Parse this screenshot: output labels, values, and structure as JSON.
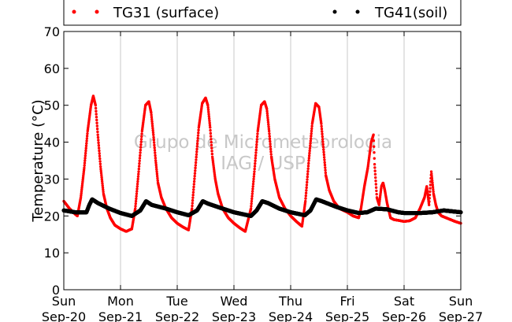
{
  "chart_data": {
    "type": "scatter",
    "ylabel": "Temperature (°C)",
    "xlabel": "",
    "ylim": [
      0,
      70
    ],
    "yticks": [
      0,
      10,
      20,
      30,
      40,
      50,
      60,
      70
    ],
    "xlim_days": [
      0,
      7
    ],
    "xticks": [
      {
        "day": "Sun",
        "date": "Sep-20"
      },
      {
        "day": "Mon",
        "date": "Sep-21"
      },
      {
        "day": "Tue",
        "date": "Sep-22"
      },
      {
        "day": "Wed",
        "date": "Sep-23"
      },
      {
        "day": "Thu",
        "date": "Sep-24"
      },
      {
        "day": "Fri",
        "date": "Sep-25"
      },
      {
        "day": "Sat",
        "date": "Sep-26"
      },
      {
        "day": "Sun",
        "date": "Sep-27"
      }
    ],
    "grid": "vertical",
    "legend": "top",
    "watermark": [
      "Grupo de Micrometeorologia",
      "IAG / USP"
    ],
    "series": [
      {
        "name": "TG31 (surface)",
        "color": "#ff0000",
        "x": [
          0.0,
          0.1,
          0.2,
          0.24,
          0.3,
          0.36,
          0.42,
          0.48,
          0.52,
          0.56,
          0.6,
          0.65,
          0.7,
          0.76,
          0.82,
          0.9,
          1.0,
          1.1,
          1.2,
          1.26,
          1.32,
          1.38,
          1.44,
          1.5,
          1.54,
          1.58,
          1.62,
          1.66,
          1.72,
          1.8,
          1.9,
          2.0,
          2.1,
          2.2,
          2.26,
          2.32,
          2.38,
          2.44,
          2.5,
          2.54,
          2.58,
          2.62,
          2.67,
          2.72,
          2.8,
          2.9,
          3.0,
          3.1,
          3.2,
          3.3,
          3.36,
          3.42,
          3.48,
          3.54,
          3.58,
          3.62,
          3.66,
          3.72,
          3.8,
          3.9,
          4.0,
          4.1,
          4.2,
          4.26,
          4.32,
          4.38,
          4.44,
          4.5,
          4.54,
          4.58,
          4.62,
          4.68,
          4.76,
          4.86,
          5.0,
          5.1,
          5.2,
          5.24,
          5.3,
          5.36,
          5.42,
          5.46,
          5.48,
          5.52,
          5.56,
          5.6,
          5.63,
          5.66,
          5.7,
          5.76,
          5.82,
          5.9,
          6.0,
          6.1,
          6.2,
          6.28,
          6.36,
          6.4,
          6.44,
          6.48,
          6.52,
          6.56,
          6.6,
          6.66,
          6.74,
          6.82,
          6.9,
          7.0
        ],
        "y": [
          24.0,
          22.0,
          20.5,
          20.0,
          25.0,
          33.0,
          43.0,
          50.0,
          52.5,
          50.0,
          42.0,
          33.0,
          26.0,
          22.0,
          19.5,
          17.5,
          16.5,
          15.8,
          16.5,
          22.0,
          32.0,
          43.0,
          50.0,
          51.0,
          48.0,
          42.0,
          35.0,
          29.0,
          25.0,
          22.0,
          19.5,
          18.0,
          17.0,
          16.2,
          22.0,
          33.0,
          44.0,
          50.5,
          52.0,
          50.0,
          44.0,
          36.0,
          30.0,
          26.0,
          22.0,
          19.5,
          18.0,
          16.8,
          15.8,
          22.0,
          32.0,
          43.0,
          50.0,
          51.0,
          49.0,
          43.0,
          36.0,
          30.0,
          25.0,
          22.0,
          20.0,
          18.5,
          17.2,
          24.0,
          35.0,
          45.0,
          50.5,
          49.5,
          45.0,
          38.0,
          31.0,
          27.0,
          24.0,
          22.0,
          21.0,
          20.0,
          19.5,
          22.0,
          28.0,
          33.0,
          40.0,
          42.0,
          34.0,
          25.0,
          23.0,
          28.0,
          29.0,
          27.0,
          23.5,
          19.5,
          19.0,
          18.8,
          18.5,
          18.7,
          19.5,
          22.0,
          25.0,
          28.0,
          23.0,
          32.0,
          26.0,
          23.0,
          21.0,
          20.0,
          19.5,
          19.0,
          18.5,
          18.0
        ]
      },
      {
        "name": "TG41(soil)",
        "color": "#000000",
        "x": [
          0.0,
          0.2,
          0.4,
          0.45,
          0.5,
          0.6,
          0.8,
          1.0,
          1.2,
          1.35,
          1.45,
          1.55,
          1.8,
          2.0,
          2.2,
          2.35,
          2.45,
          2.55,
          2.8,
          3.0,
          3.3,
          3.4,
          3.5,
          3.6,
          3.8,
          4.0,
          4.25,
          4.35,
          4.45,
          4.55,
          4.8,
          5.0,
          5.2,
          5.35,
          5.5,
          5.7,
          5.9,
          6.0,
          6.3,
          6.5,
          6.7,
          7.0
        ],
        "y": [
          21.5,
          21.0,
          21.0,
          23.0,
          24.5,
          23.5,
          22.0,
          20.8,
          20.0,
          21.5,
          24.0,
          23.0,
          22.0,
          21.0,
          20.2,
          21.5,
          24.0,
          23.3,
          22.0,
          21.0,
          20.0,
          21.5,
          24.0,
          23.5,
          22.0,
          21.0,
          20.2,
          21.5,
          24.5,
          24.0,
          22.5,
          21.5,
          20.8,
          21.0,
          22.0,
          21.8,
          21.0,
          20.8,
          20.8,
          21.0,
          21.5,
          21.0
        ]
      }
    ]
  }
}
